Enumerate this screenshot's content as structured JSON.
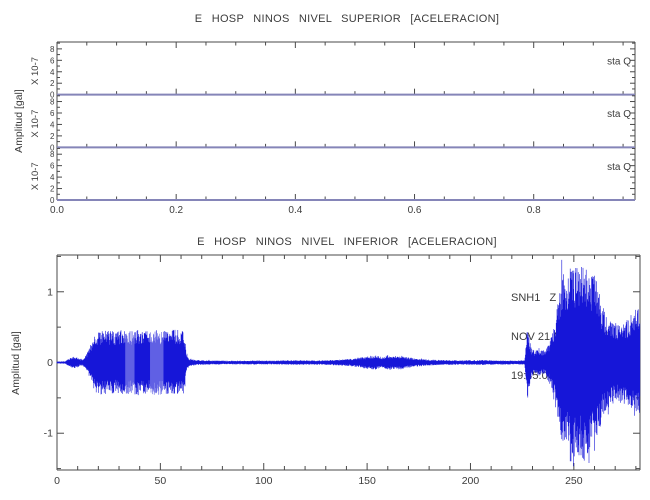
{
  "app": {
    "description": "Seismic accelerogram viewer with two stacked record sections"
  },
  "chart_data": [
    {
      "type": "line",
      "title": "E HOSP NINOS NIVEL SUPERIOR [ACELERACION]",
      "ylabel": "Amplitud [gal]",
      "y_unit_label": "X 10-7",
      "panels": [
        {
          "station_label": "sta   Q",
          "constant_value": 0
        },
        {
          "station_label": "sta   Q",
          "constant_value": 0
        },
        {
          "station_label": "sta   Q",
          "constant_value": 0
        }
      ],
      "x_tick_labels": [
        "0.0",
        "0.2",
        "0.4",
        "0.6",
        "0.8"
      ],
      "x_ticks": [
        0.0,
        0.2,
        0.4,
        0.6,
        0.8
      ],
      "x_minor_step": 0.05,
      "x_range": [
        0,
        0.97
      ],
      "y_ticks_per_panel": [
        0,
        2,
        4,
        6,
        8
      ],
      "y_minor_step": 1,
      "y_range_per_panel": [
        0,
        9.2
      ],
      "grid": false,
      "legend_position": "none",
      "trace_color": "#8585b8",
      "note": "three flat zero-amplitude traces"
    },
    {
      "type": "line",
      "title": "E HOSP NINOS NIVEL INFERIOR [ACELERACION]",
      "ylabel": "Amplitud [gal]",
      "annotation": {
        "station": "SNH1   Z",
        "date": "NOV 21 (325), 2025",
        "time": "19:45:00.190"
      },
      "x_ticks": [
        0,
        50,
        100,
        150,
        200,
        250
      ],
      "x_minor_step": 10,
      "x_range": [
        0,
        282
      ],
      "y_ticks": [
        -1,
        0,
        1
      ],
      "y_minor_step": 0.5,
      "y_range": [
        -1.52,
        1.52
      ],
      "grid": false,
      "legend_position": "none",
      "trace_color": "#1616d8",
      "signal_mean": 0,
      "envelope_gal": [
        [
          0,
          0.015
        ],
        [
          4,
          0.02
        ],
        [
          5.5,
          0.05
        ],
        [
          7.5,
          0.085
        ],
        [
          9.5,
          0.08
        ],
        [
          11,
          0.05
        ],
        [
          12.5,
          0.045
        ],
        [
          14,
          0.1
        ],
        [
          15.5,
          0.19
        ],
        [
          17,
          0.31
        ],
        [
          18.5,
          0.41
        ],
        [
          20,
          0.45
        ],
        [
          24,
          0.46
        ],
        [
          28,
          0.44
        ],
        [
          32,
          0.46
        ],
        [
          36,
          0.45
        ],
        [
          40,
          0.47
        ],
        [
          44,
          0.45
        ],
        [
          48,
          0.46
        ],
        [
          52,
          0.45
        ],
        [
          56,
          0.47
        ],
        [
          60,
          0.46
        ],
        [
          61.8,
          0.44
        ],
        [
          62.6,
          0.14
        ],
        [
          64,
          0.055
        ],
        [
          68,
          0.035
        ],
        [
          75,
          0.028
        ],
        [
          85,
          0.026
        ],
        [
          95,
          0.03
        ],
        [
          105,
          0.026
        ],
        [
          115,
          0.034
        ],
        [
          125,
          0.03
        ],
        [
          135,
          0.04
        ],
        [
          142,
          0.052
        ],
        [
          146,
          0.07
        ],
        [
          150,
          0.088
        ],
        [
          154,
          0.1
        ],
        [
          157,
          0.082
        ],
        [
          160,
          0.11
        ],
        [
          163,
          0.09
        ],
        [
          166,
          0.1
        ],
        [
          170,
          0.072
        ],
        [
          174,
          0.06
        ],
        [
          178,
          0.046
        ],
        [
          185,
          0.036
        ],
        [
          195,
          0.03
        ],
        [
          205,
          0.034
        ],
        [
          215,
          0.03
        ],
        [
          222,
          0.028
        ],
        [
          226.2,
          0.032
        ],
        [
          227,
          0.28
        ],
        [
          227.7,
          0.62
        ],
        [
          228.5,
          0.34
        ],
        [
          229.5,
          0.2
        ],
        [
          231,
          0.17
        ],
        [
          233,
          0.18
        ],
        [
          235,
          0.17
        ],
        [
          236.5,
          0.2
        ],
        [
          238,
          0.28
        ],
        [
          239.5,
          0.42
        ],
        [
          241,
          0.62
        ],
        [
          242.5,
          0.92
        ],
        [
          244,
          1.18
        ],
        [
          245.5,
          1.38
        ],
        [
          247,
          1.22
        ],
        [
          248.5,
          1.46
        ],
        [
          250,
          1.32
        ],
        [
          251.5,
          1.5
        ],
        [
          253,
          1.36
        ],
        [
          254.5,
          1.48
        ],
        [
          256,
          1.32
        ],
        [
          257.5,
          1.44
        ],
        [
          259,
          1.22
        ],
        [
          260.5,
          1.36
        ],
        [
          262,
          1.02
        ],
        [
          263.5,
          0.82
        ],
        [
          265,
          0.72
        ],
        [
          267,
          0.63
        ],
        [
          269,
          0.58
        ],
        [
          271,
          0.56
        ],
        [
          273,
          0.6
        ],
        [
          275,
          0.58
        ],
        [
          277,
          0.66
        ],
        [
          278.5,
          0.7
        ],
        [
          280,
          0.82
        ],
        [
          281,
          0.76
        ],
        [
          282,
          0.7
        ]
      ],
      "light_bands": [
        [
          33,
          37.5
        ],
        [
          45,
          51.5
        ]
      ]
    }
  ]
}
